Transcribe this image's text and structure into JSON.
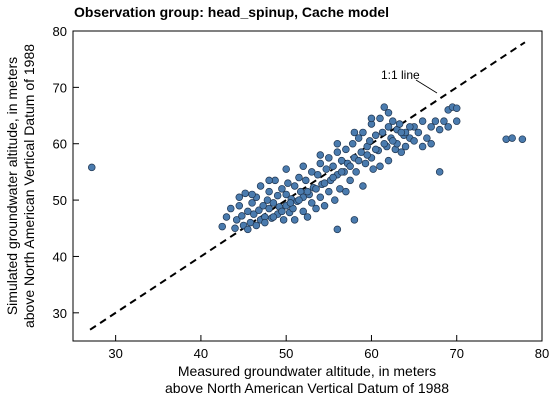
{
  "chart_data": {
    "type": "scatter",
    "title": "Observation group: head_spinup, Cache model",
    "xlabel_line1": "Measured groundwater altitude, in meters",
    "xlabel_line2": "above North American Vertical Datum of 1988",
    "ylabel_line1": "Simulated groundwater altitude, in meters",
    "ylabel_line2": "above North American Vertical Datum of 1988",
    "xlim": [
      25,
      80
    ],
    "ylim": [
      25,
      80
    ],
    "xticks": [
      30,
      40,
      50,
      60,
      70,
      80
    ],
    "yticks": [
      30,
      40,
      50,
      60,
      70,
      80
    ],
    "grid": false,
    "point_color": "#4a7bae",
    "point_edge_color": "#1f3550",
    "reference_line": {
      "label": "1:1 line",
      "x": [
        27,
        78
      ],
      "y": [
        27,
        78
      ],
      "style": "dashed",
      "color": "#000000"
    },
    "points": [
      [
        27.2,
        55.8
      ],
      [
        42.5,
        45.3
      ],
      [
        43.0,
        47.0
      ],
      [
        43.5,
        48.5
      ],
      [
        44.0,
        45.0
      ],
      [
        44.2,
        46.5
      ],
      [
        44.5,
        49.0
      ],
      [
        44.8,
        47.2
      ],
      [
        45.0,
        45.5
      ],
      [
        45.2,
        51.2
      ],
      [
        45.5,
        48.0
      ],
      [
        45.8,
        46.0
      ],
      [
        46.0,
        49.5
      ],
      [
        46.2,
        47.5
      ],
      [
        46.5,
        50.5
      ],
      [
        46.8,
        48.2
      ],
      [
        47.0,
        46.5
      ],
      [
        47.0,
        52.5
      ],
      [
        47.3,
        49.0
      ],
      [
        47.5,
        47.0
      ],
      [
        47.8,
        50.0
      ],
      [
        48.0,
        48.5
      ],
      [
        48.0,
        51.5
      ],
      [
        48.3,
        46.8
      ],
      [
        48.5,
        49.5
      ],
      [
        48.7,
        53.5
      ],
      [
        49.0,
        47.5
      ],
      [
        49.0,
        50.8
      ],
      [
        49.2,
        48.8
      ],
      [
        49.5,
        52.0
      ],
      [
        49.7,
        46.5
      ],
      [
        50.0,
        49.0
      ],
      [
        50.0,
        51.0
      ],
      [
        50.2,
        53.0
      ],
      [
        50.4,
        47.8
      ],
      [
        50.6,
        50.2
      ],
      [
        50.8,
        48.5
      ],
      [
        51.0,
        52.5
      ],
      [
        51.0,
        46.5
      ],
      [
        51.3,
        49.8
      ],
      [
        51.5,
        54.0
      ],
      [
        51.7,
        51.5
      ],
      [
        52.0,
        48.0
      ],
      [
        52.0,
        50.5
      ],
      [
        52.3,
        53.5
      ],
      [
        52.5,
        47.0
      ],
      [
        52.7,
        51.0
      ],
      [
        53.0,
        55.0
      ],
      [
        53.0,
        49.5
      ],
      [
        53.2,
        52.2
      ],
      [
        53.5,
        48.5
      ],
      [
        53.7,
        54.5
      ],
      [
        54.0,
        50.5
      ],
      [
        54.0,
        56.5
      ],
      [
        54.2,
        52.8
      ],
      [
        54.5,
        49.0
      ],
      [
        54.7,
        55.5
      ],
      [
        55.0,
        51.5
      ],
      [
        55.0,
        57.5
      ],
      [
        55.2,
        53.5
      ],
      [
        55.5,
        56.0
      ],
      [
        55.7,
        50.0
      ],
      [
        56.0,
        58.5
      ],
      [
        56.0,
        54.5
      ],
      [
        56.0,
        44.8
      ],
      [
        56.3,
        52.0
      ],
      [
        56.5,
        57.0
      ],
      [
        56.8,
        55.0
      ],
      [
        57.0,
        59.0
      ],
      [
        57.0,
        51.5
      ],
      [
        57.2,
        56.5
      ],
      [
        57.5,
        53.5
      ],
      [
        57.8,
        60.0
      ],
      [
        58.0,
        57.5
      ],
      [
        58.0,
        46.5
      ],
      [
        58.2,
        55.0
      ],
      [
        58.5,
        61.0
      ],
      [
        58.8,
        58.5
      ],
      [
        59.0,
        52.5
      ],
      [
        59.0,
        62.0
      ],
      [
        59.3,
        56.5
      ],
      [
        59.5,
        59.5
      ],
      [
        59.8,
        60.5
      ],
      [
        60.0,
        57.5
      ],
      [
        60.0,
        63.5
      ],
      [
        60.2,
        55.5
      ],
      [
        60.5,
        61.5
      ],
      [
        60.8,
        58.8
      ],
      [
        61.0,
        64.5
      ],
      [
        61.0,
        56.0
      ],
      [
        61.3,
        62.0
      ],
      [
        61.5,
        66.5
      ],
      [
        61.8,
        59.5
      ],
      [
        62.0,
        63.0
      ],
      [
        62.0,
        57.0
      ],
      [
        62.3,
        61.0
      ],
      [
        62.5,
        64.0
      ],
      [
        62.8,
        59.0
      ],
      [
        63.0,
        62.5
      ],
      [
        63.0,
        60.0
      ],
      [
        63.3,
        63.5
      ],
      [
        63.5,
        58.5
      ],
      [
        63.8,
        61.5
      ],
      [
        64.0,
        62.0
      ],
      [
        64.0,
        59.5
      ],
      [
        64.5,
        61.0
      ],
      [
        65.0,
        63.0
      ],
      [
        65.0,
        60.5
      ],
      [
        65.5,
        62.0
      ],
      [
        66.0,
        59.5
      ],
      [
        66.0,
        64.0
      ],
      [
        66.5,
        61.0
      ],
      [
        67.0,
        63.0
      ],
      [
        67.0,
        60.0
      ],
      [
        67.5,
        64.0
      ],
      [
        68.0,
        62.5
      ],
      [
        68.0,
        55.0
      ],
      [
        68.5,
        64.0
      ],
      [
        69.0,
        63.0
      ],
      [
        69.0,
        66.0
      ],
      [
        69.5,
        66.5
      ],
      [
        70.0,
        66.3
      ],
      [
        70.0,
        64.0
      ],
      [
        75.8,
        60.8
      ],
      [
        76.5,
        61.0
      ],
      [
        77.7,
        60.8
      ],
      [
        45.5,
        44.8
      ],
      [
        46.5,
        45.5
      ],
      [
        47.5,
        46.0
      ],
      [
        48.5,
        47.0
      ],
      [
        49.5,
        48.0
      ],
      [
        50.5,
        49.5
      ],
      [
        51.5,
        50.0
      ],
      [
        52.5,
        51.5
      ],
      [
        53.5,
        52.0
      ],
      [
        54.5,
        53.0
      ],
      [
        55.5,
        54.0
      ],
      [
        56.5,
        55.0
      ],
      [
        57.5,
        56.0
      ],
      [
        58.5,
        57.0
      ],
      [
        59.5,
        58.0
      ],
      [
        60.5,
        59.0
      ],
      [
        61.5,
        60.0
      ],
      [
        62.5,
        60.5
      ],
      [
        63.5,
        62.0
      ],
      [
        64.5,
        63.0
      ],
      [
        50.0,
        55.5
      ],
      [
        52.0,
        56.0
      ],
      [
        54.0,
        58.0
      ],
      [
        56.0,
        60.0
      ],
      [
        58.0,
        62.0
      ],
      [
        60.0,
        64.5
      ],
      [
        62.0,
        65.5
      ],
      [
        48.0,
        53.5
      ],
      [
        46.0,
        51.0
      ],
      [
        44.5,
        50.5
      ]
    ]
  }
}
